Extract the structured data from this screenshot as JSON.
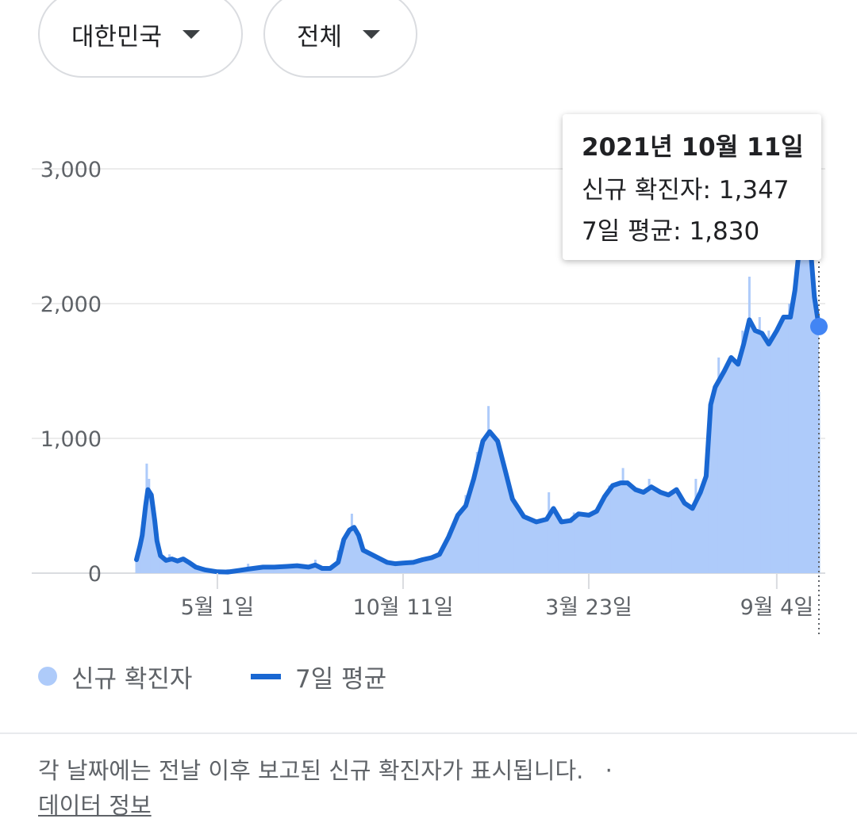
{
  "filters": {
    "region": "대한민국",
    "type": "전체"
  },
  "tooltip": {
    "date": "2021년 10월 11일",
    "cases_label": "신규 확진자:",
    "cases_value": "1,347",
    "avg_label": "7일 평균:",
    "avg_value": "1,830"
  },
  "legend": {
    "cases": "신규 확진자",
    "avg": "7일 평균"
  },
  "colors": {
    "cases_fill": "#aecbfa",
    "avg_line": "#1967d2",
    "marker": "#4285f4"
  },
  "footer": {
    "note": "각 날짜에는 전날 이후 보고된 신규 확진자가 표시됩니다.",
    "separator": "·",
    "link": "데이터 정보"
  },
  "chart_data": {
    "type": "area",
    "title": "",
    "xlabel": "",
    "ylabel": "",
    "x_start": "2020-02-20",
    "x_end": "2021-10-11",
    "x_ticks": [
      "5월 1일",
      "10월 11일",
      "3월 23일",
      "9월 4일"
    ],
    "x_tick_dates": [
      "2020-05-01",
      "2020-10-11",
      "2021-03-23",
      "2021-09-04"
    ],
    "y_ticks": [
      "0",
      "1,000",
      "2,000",
      "3,000"
    ],
    "y_tick_values": [
      0,
      1000,
      2000,
      3000
    ],
    "ylim": [
      0,
      3000
    ],
    "grid": true,
    "legend_position": "bottom-left",
    "series": [
      {
        "name": "신규 확진자",
        "kind": "bars",
        "points": [
          [
            "2020-02-20",
            100
          ],
          [
            "2020-02-25",
            300
          ],
          [
            "2020-02-29",
            813
          ],
          [
            "2020-03-02",
            700
          ],
          [
            "2020-03-05",
            500
          ],
          [
            "2020-03-10",
            200
          ],
          [
            "2020-03-15",
            90
          ],
          [
            "2020-03-20",
            140
          ],
          [
            "2020-03-28",
            105
          ],
          [
            "2020-04-05",
            80
          ],
          [
            "2020-04-10",
            30
          ],
          [
            "2020-04-20",
            10
          ],
          [
            "2020-05-01",
            8
          ],
          [
            "2020-05-10",
            30
          ],
          [
            "2020-05-20",
            20
          ],
          [
            "2020-05-28",
            70
          ],
          [
            "2020-06-10",
            40
          ],
          [
            "2020-06-20",
            50
          ],
          [
            "2020-07-01",
            55
          ],
          [
            "2020-07-10",
            45
          ],
          [
            "2020-07-20",
            40
          ],
          [
            "2020-07-26",
            100
          ],
          [
            "2020-08-05",
            30
          ],
          [
            "2020-08-15",
            170
          ],
          [
            "2020-08-27",
            441
          ],
          [
            "2020-09-05",
            160
          ],
          [
            "2020-09-15",
            110
          ],
          [
            "2020-09-25",
            60
          ],
          [
            "2020-10-05",
            70
          ],
          [
            "2020-10-15",
            90
          ],
          [
            "2020-10-25",
            110
          ],
          [
            "2020-11-05",
            130
          ],
          [
            "2020-11-20",
            300
          ],
          [
            "2020-12-05",
            580
          ],
          [
            "2020-12-15",
            900
          ],
          [
            "2020-12-25",
            1240
          ],
          [
            "2021-01-05",
            900
          ],
          [
            "2021-01-15",
            580
          ],
          [
            "2021-01-25",
            400
          ],
          [
            "2021-02-05",
            380
          ],
          [
            "2021-02-16",
            600
          ],
          [
            "2021-02-25",
            400
          ],
          [
            "2021-03-10",
            450
          ],
          [
            "2021-03-23",
            440
          ],
          [
            "2021-04-10",
            650
          ],
          [
            "2021-04-22",
            780
          ],
          [
            "2021-05-01",
            650
          ],
          [
            "2021-05-15",
            700
          ],
          [
            "2021-05-25",
            600
          ],
          [
            "2021-06-05",
            560
          ],
          [
            "2021-06-15",
            520
          ],
          [
            "2021-06-25",
            700
          ],
          [
            "2021-07-07",
            1200
          ],
          [
            "2021-07-15",
            1600
          ],
          [
            "2021-07-25",
            1500
          ],
          [
            "2021-08-05",
            1800
          ],
          [
            "2021-08-11",
            2200
          ],
          [
            "2021-08-20",
            1900
          ],
          [
            "2021-08-28",
            1800
          ],
          [
            "2021-09-04",
            1800
          ],
          [
            "2021-09-15",
            2000
          ],
          [
            "2021-09-24",
            3270
          ],
          [
            "2021-10-01",
            2500
          ],
          [
            "2021-10-06",
            2000
          ],
          [
            "2021-10-11",
            1347
          ]
        ]
      },
      {
        "name": "7일 평균",
        "kind": "line",
        "points": [
          [
            "2020-02-20",
            100
          ],
          [
            "2020-02-23",
            200
          ],
          [
            "2020-02-25",
            280
          ],
          [
            "2020-02-28",
            500
          ],
          [
            "2020-03-01",
            620
          ],
          [
            "2020-03-04",
            580
          ],
          [
            "2020-03-07",
            390
          ],
          [
            "2020-03-09",
            240
          ],
          [
            "2020-03-12",
            130
          ],
          [
            "2020-03-17",
            95
          ],
          [
            "2020-03-22",
            105
          ],
          [
            "2020-03-27",
            90
          ],
          [
            "2020-04-01",
            105
          ],
          [
            "2020-04-06",
            80
          ],
          [
            "2020-04-12",
            45
          ],
          [
            "2020-04-20",
            25
          ],
          [
            "2020-05-01",
            10
          ],
          [
            "2020-05-10",
            8
          ],
          [
            "2020-05-20",
            20
          ],
          [
            "2020-05-28",
            30
          ],
          [
            "2020-06-10",
            45
          ],
          [
            "2020-06-20",
            45
          ],
          [
            "2020-07-01",
            50
          ],
          [
            "2020-07-10",
            55
          ],
          [
            "2020-07-20",
            45
          ],
          [
            "2020-07-26",
            60
          ],
          [
            "2020-08-01",
            35
          ],
          [
            "2020-08-08",
            35
          ],
          [
            "2020-08-15",
            80
          ],
          [
            "2020-08-20",
            250
          ],
          [
            "2020-08-25",
            320
          ],
          [
            "2020-08-29",
            340
          ],
          [
            "2020-09-02",
            280
          ],
          [
            "2020-09-06",
            170
          ],
          [
            "2020-09-13",
            140
          ],
          [
            "2020-09-20",
            110
          ],
          [
            "2020-09-27",
            80
          ],
          [
            "2020-10-04",
            70
          ],
          [
            "2020-10-11",
            75
          ],
          [
            "2020-10-20",
            80
          ],
          [
            "2020-10-28",
            100
          ],
          [
            "2020-11-05",
            115
          ],
          [
            "2020-11-12",
            140
          ],
          [
            "2020-11-20",
            270
          ],
          [
            "2020-11-28",
            430
          ],
          [
            "2020-12-05",
            500
          ],
          [
            "2020-12-12",
            700
          ],
          [
            "2020-12-20",
            980
          ],
          [
            "2020-12-26",
            1050
          ],
          [
            "2021-01-02",
            980
          ],
          [
            "2021-01-09",
            750
          ],
          [
            "2021-01-15",
            550
          ],
          [
            "2021-01-25",
            420
          ],
          [
            "2021-02-05",
            380
          ],
          [
            "2021-02-14",
            400
          ],
          [
            "2021-02-20",
            480
          ],
          [
            "2021-02-27",
            380
          ],
          [
            "2021-03-07",
            390
          ],
          [
            "2021-03-14",
            440
          ],
          [
            "2021-03-23",
            430
          ],
          [
            "2021-03-30",
            460
          ],
          [
            "2021-04-06",
            570
          ],
          [
            "2021-04-13",
            650
          ],
          [
            "2021-04-20",
            670
          ],
          [
            "2021-04-26",
            670
          ],
          [
            "2021-05-03",
            620
          ],
          [
            "2021-05-10",
            600
          ],
          [
            "2021-05-17",
            640
          ],
          [
            "2021-05-25",
            600
          ],
          [
            "2021-06-01",
            580
          ],
          [
            "2021-06-08",
            620
          ],
          [
            "2021-06-15",
            520
          ],
          [
            "2021-06-22",
            480
          ],
          [
            "2021-06-29",
            600
          ],
          [
            "2021-07-04",
            720
          ],
          [
            "2021-07-08",
            1250
          ],
          [
            "2021-07-12",
            1380
          ],
          [
            "2021-07-20",
            1500
          ],
          [
            "2021-07-26",
            1600
          ],
          [
            "2021-08-01",
            1550
          ],
          [
            "2021-08-06",
            1700
          ],
          [
            "2021-08-11",
            1880
          ],
          [
            "2021-08-16",
            1800
          ],
          [
            "2021-08-22",
            1780
          ],
          [
            "2021-08-28",
            1700
          ],
          [
            "2021-09-04",
            1800
          ],
          [
            "2021-09-10",
            1900
          ],
          [
            "2021-09-16",
            1900
          ],
          [
            "2021-09-20",
            2100
          ],
          [
            "2021-09-24",
            2430
          ],
          [
            "2021-09-27",
            2760
          ],
          [
            "2021-09-30",
            2820
          ],
          [
            "2021-10-03",
            2480
          ],
          [
            "2021-10-07",
            2050
          ],
          [
            "2021-10-11",
            1830
          ]
        ]
      }
    ],
    "highlight": {
      "date": "2021-10-11",
      "cases": 1347,
      "avg": 1830
    }
  }
}
